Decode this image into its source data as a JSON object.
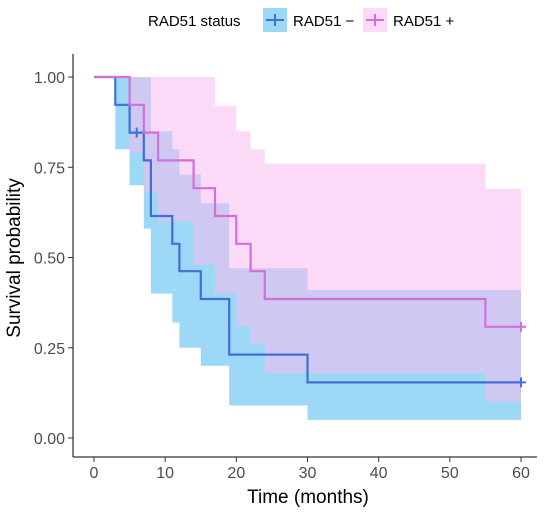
{
  "chart_data": {
    "type": "line",
    "subtype": "kaplan-meier",
    "title": "",
    "xlabel": "Time (months)",
    "ylabel": "Survival probability",
    "xlim": [
      0,
      60
    ],
    "ylim": [
      0,
      1
    ],
    "x_ticks": [
      0,
      10,
      20,
      30,
      40,
      50,
      60
    ],
    "x_tick_labels": [
      "0",
      "10",
      "20",
      "30",
      "40",
      "50",
      "60"
    ],
    "y_ticks": [
      0,
      0.25,
      0.5,
      0.75,
      1
    ],
    "y_tick_labels": [
      "0.00",
      "0.25",
      "0.50",
      "0.75",
      "1.00"
    ],
    "grid": false,
    "legend": {
      "title": "RAD51 status",
      "position": "top"
    },
    "series": [
      {
        "name": "RAD51 −",
        "color": "#3f6fd8",
        "fill": "#74c8f3",
        "steps": [
          [
            0,
            1.0
          ],
          [
            3,
            0.923
          ],
          [
            5,
            0.846
          ],
          [
            7,
            0.769
          ],
          [
            8,
            0.615
          ],
          [
            11,
            0.538
          ],
          [
            12,
            0.462
          ],
          [
            15,
            0.385
          ],
          [
            19,
            0.231
          ],
          [
            30,
            0.154
          ],
          [
            60,
            0.154
          ]
        ],
        "ci_upper": [
          [
            0,
            1.0
          ],
          [
            3,
            1.0
          ],
          [
            5,
            1.0
          ],
          [
            7,
            1.0
          ],
          [
            8,
            0.85
          ],
          [
            11,
            0.8
          ],
          [
            12,
            0.73
          ],
          [
            15,
            0.65
          ],
          [
            19,
            0.47
          ],
          [
            30,
            0.41
          ],
          [
            60,
            0.41
          ]
        ],
        "ci_lower": [
          [
            0,
            1.0
          ],
          [
            3,
            0.8
          ],
          [
            5,
            0.7
          ],
          [
            7,
            0.58
          ],
          [
            8,
            0.4
          ],
          [
            11,
            0.32
          ],
          [
            12,
            0.25
          ],
          [
            15,
            0.2
          ],
          [
            19,
            0.09
          ],
          [
            30,
            0.05
          ],
          [
            60,
            0.05
          ]
        ],
        "censored": [
          [
            6,
            0.846
          ],
          [
            60,
            0.154
          ]
        ]
      },
      {
        "name": "RAD51 +",
        "color": "#d070d8",
        "fill": "#f7bcf0",
        "steps": [
          [
            0,
            1.0
          ],
          [
            5,
            0.923
          ],
          [
            7,
            0.846
          ],
          [
            9,
            0.769
          ],
          [
            14,
            0.692
          ],
          [
            17,
            0.615
          ],
          [
            20,
            0.538
          ],
          [
            22,
            0.462
          ],
          [
            24,
            0.385
          ],
          [
            55,
            0.308
          ],
          [
            60,
            0.308
          ]
        ],
        "ci_upper": [
          [
            0,
            1.0
          ],
          [
            5,
            1.0
          ],
          [
            7,
            1.0
          ],
          [
            9,
            1.0
          ],
          [
            14,
            1.0
          ],
          [
            17,
            0.92
          ],
          [
            20,
            0.85
          ],
          [
            22,
            0.8
          ],
          [
            24,
            0.76
          ],
          [
            30,
            0.76
          ],
          [
            55,
            0.69
          ],
          [
            60,
            0.69
          ]
        ],
        "ci_lower": [
          [
            0,
            1.0
          ],
          [
            5,
            0.79
          ],
          [
            7,
            0.68
          ],
          [
            9,
            0.6
          ],
          [
            14,
            0.48
          ],
          [
            17,
            0.4
          ],
          [
            20,
            0.31
          ],
          [
            22,
            0.26
          ],
          [
            24,
            0.18
          ],
          [
            30,
            0.18
          ],
          [
            55,
            0.1
          ],
          [
            60,
            0.1
          ]
        ],
        "censored": [
          [
            60,
            0.308
          ]
        ]
      }
    ]
  }
}
